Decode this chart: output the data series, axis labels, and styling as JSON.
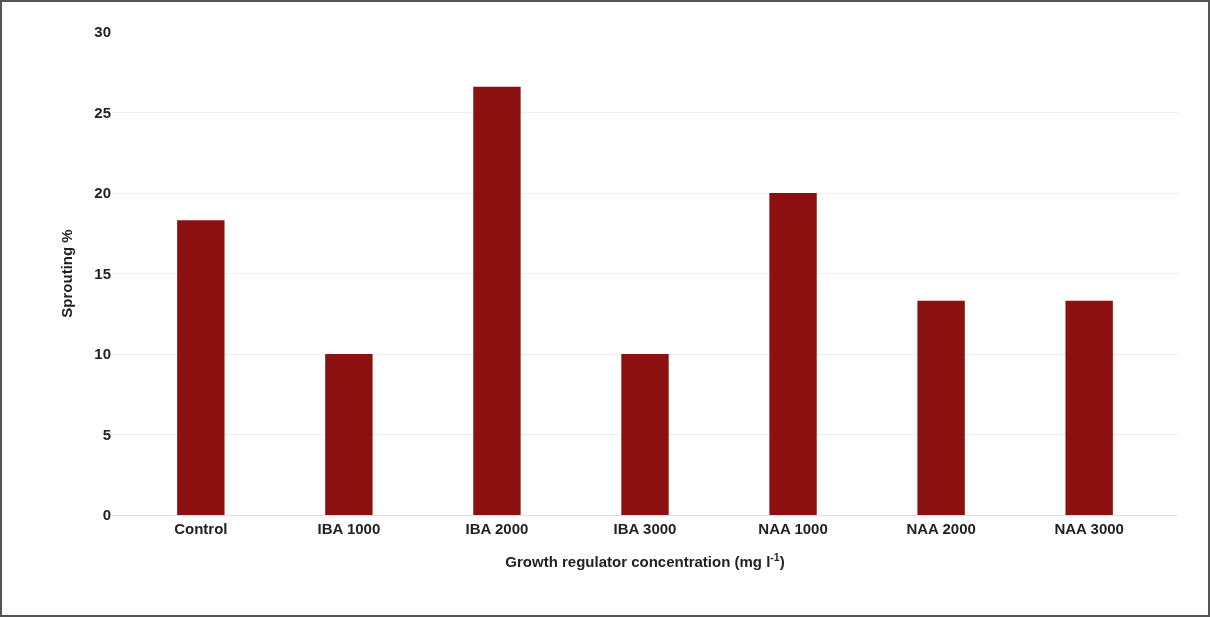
{
  "chart_data": {
    "type": "bar",
    "categories": [
      "Control",
      "IBA 1000",
      "IBA 2000",
      "IBA 3000",
      "NAA 1000",
      "NAA 2000",
      "NAA 3000"
    ],
    "values": [
      18.3,
      10,
      26.6,
      10,
      20,
      13.3,
      13.3
    ],
    "color": "#8b1010",
    "xlabel": "Growth regulator concentration (mg l$^{-1}$)",
    "ylabel": "Sprouting %",
    "ylim": [
      0,
      30
    ],
    "yticks": [
      0,
      5,
      10,
      15,
      20,
      25,
      30
    ],
    "grid": "y"
  }
}
